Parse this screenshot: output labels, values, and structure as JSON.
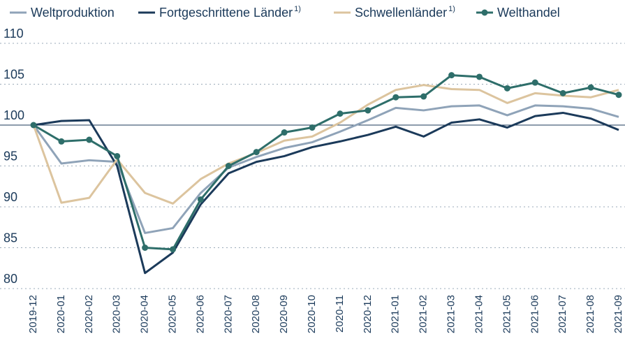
{
  "chart_data": {
    "type": "line",
    "categories": [
      "2019-12",
      "2020-01",
      "2020-02",
      "2020-03",
      "2020-04",
      "2020-05",
      "2020-06",
      "2020-07",
      "2020-08",
      "2020-09",
      "2020-10",
      "2020-11",
      "2020-12",
      "2021-01",
      "2021-02",
      "2021-03",
      "2021-04",
      "2021-05",
      "2021-06",
      "2021-07",
      "2021-08",
      "2021-09"
    ],
    "series": [
      {
        "name": "Weltproduktion",
        "color": "#8fa3b8",
        "values": [
          100,
          95.3,
          95.7,
          95.5,
          86.8,
          87.4,
          91.7,
          94.8,
          96.1,
          97.2,
          97.9,
          99.2,
          100.6,
          102.1,
          101.8,
          102.3,
          102.4,
          101.2,
          102.4,
          102.3,
          102.0,
          101.0
        ]
      },
      {
        "name": "Fortgeschrittene Länder",
        "note": "1)",
        "color": "#1b3a5a",
        "values": [
          100,
          100.5,
          100.6,
          95.0,
          81.9,
          84.4,
          90.3,
          94.1,
          95.5,
          96.2,
          97.3,
          98.0,
          98.8,
          99.8,
          98.6,
          100.3,
          100.7,
          99.7,
          101.1,
          101.5,
          100.8,
          99.4
        ]
      },
      {
        "name": "Schwellenländer",
        "note": "1)",
        "color": "#dcc49e",
        "values": [
          100,
          90.5,
          91.1,
          95.8,
          91.7,
          90.4,
          93.4,
          95.3,
          96.6,
          98.1,
          98.6,
          100.3,
          102.5,
          104.3,
          104.9,
          104.4,
          104.3,
          102.7,
          103.9,
          103.6,
          103.4,
          104.3
        ]
      },
      {
        "name": "Welthandel",
        "color": "#2e6e6a",
        "markers": true,
        "values": [
          100,
          98.0,
          98.2,
          96.2,
          85.0,
          84.8,
          90.9,
          95.0,
          96.7,
          99.1,
          99.7,
          101.4,
          101.8,
          103.4,
          103.5,
          106.1,
          105.9,
          104.5,
          105.2,
          103.9,
          104.6,
          103.7
        ]
      }
    ],
    "ylim": [
      80,
      110
    ],
    "yticks": [
      80,
      85,
      90,
      95,
      100,
      105,
      110
    ],
    "grid": true,
    "reference_line": 100,
    "legend": "top"
  }
}
